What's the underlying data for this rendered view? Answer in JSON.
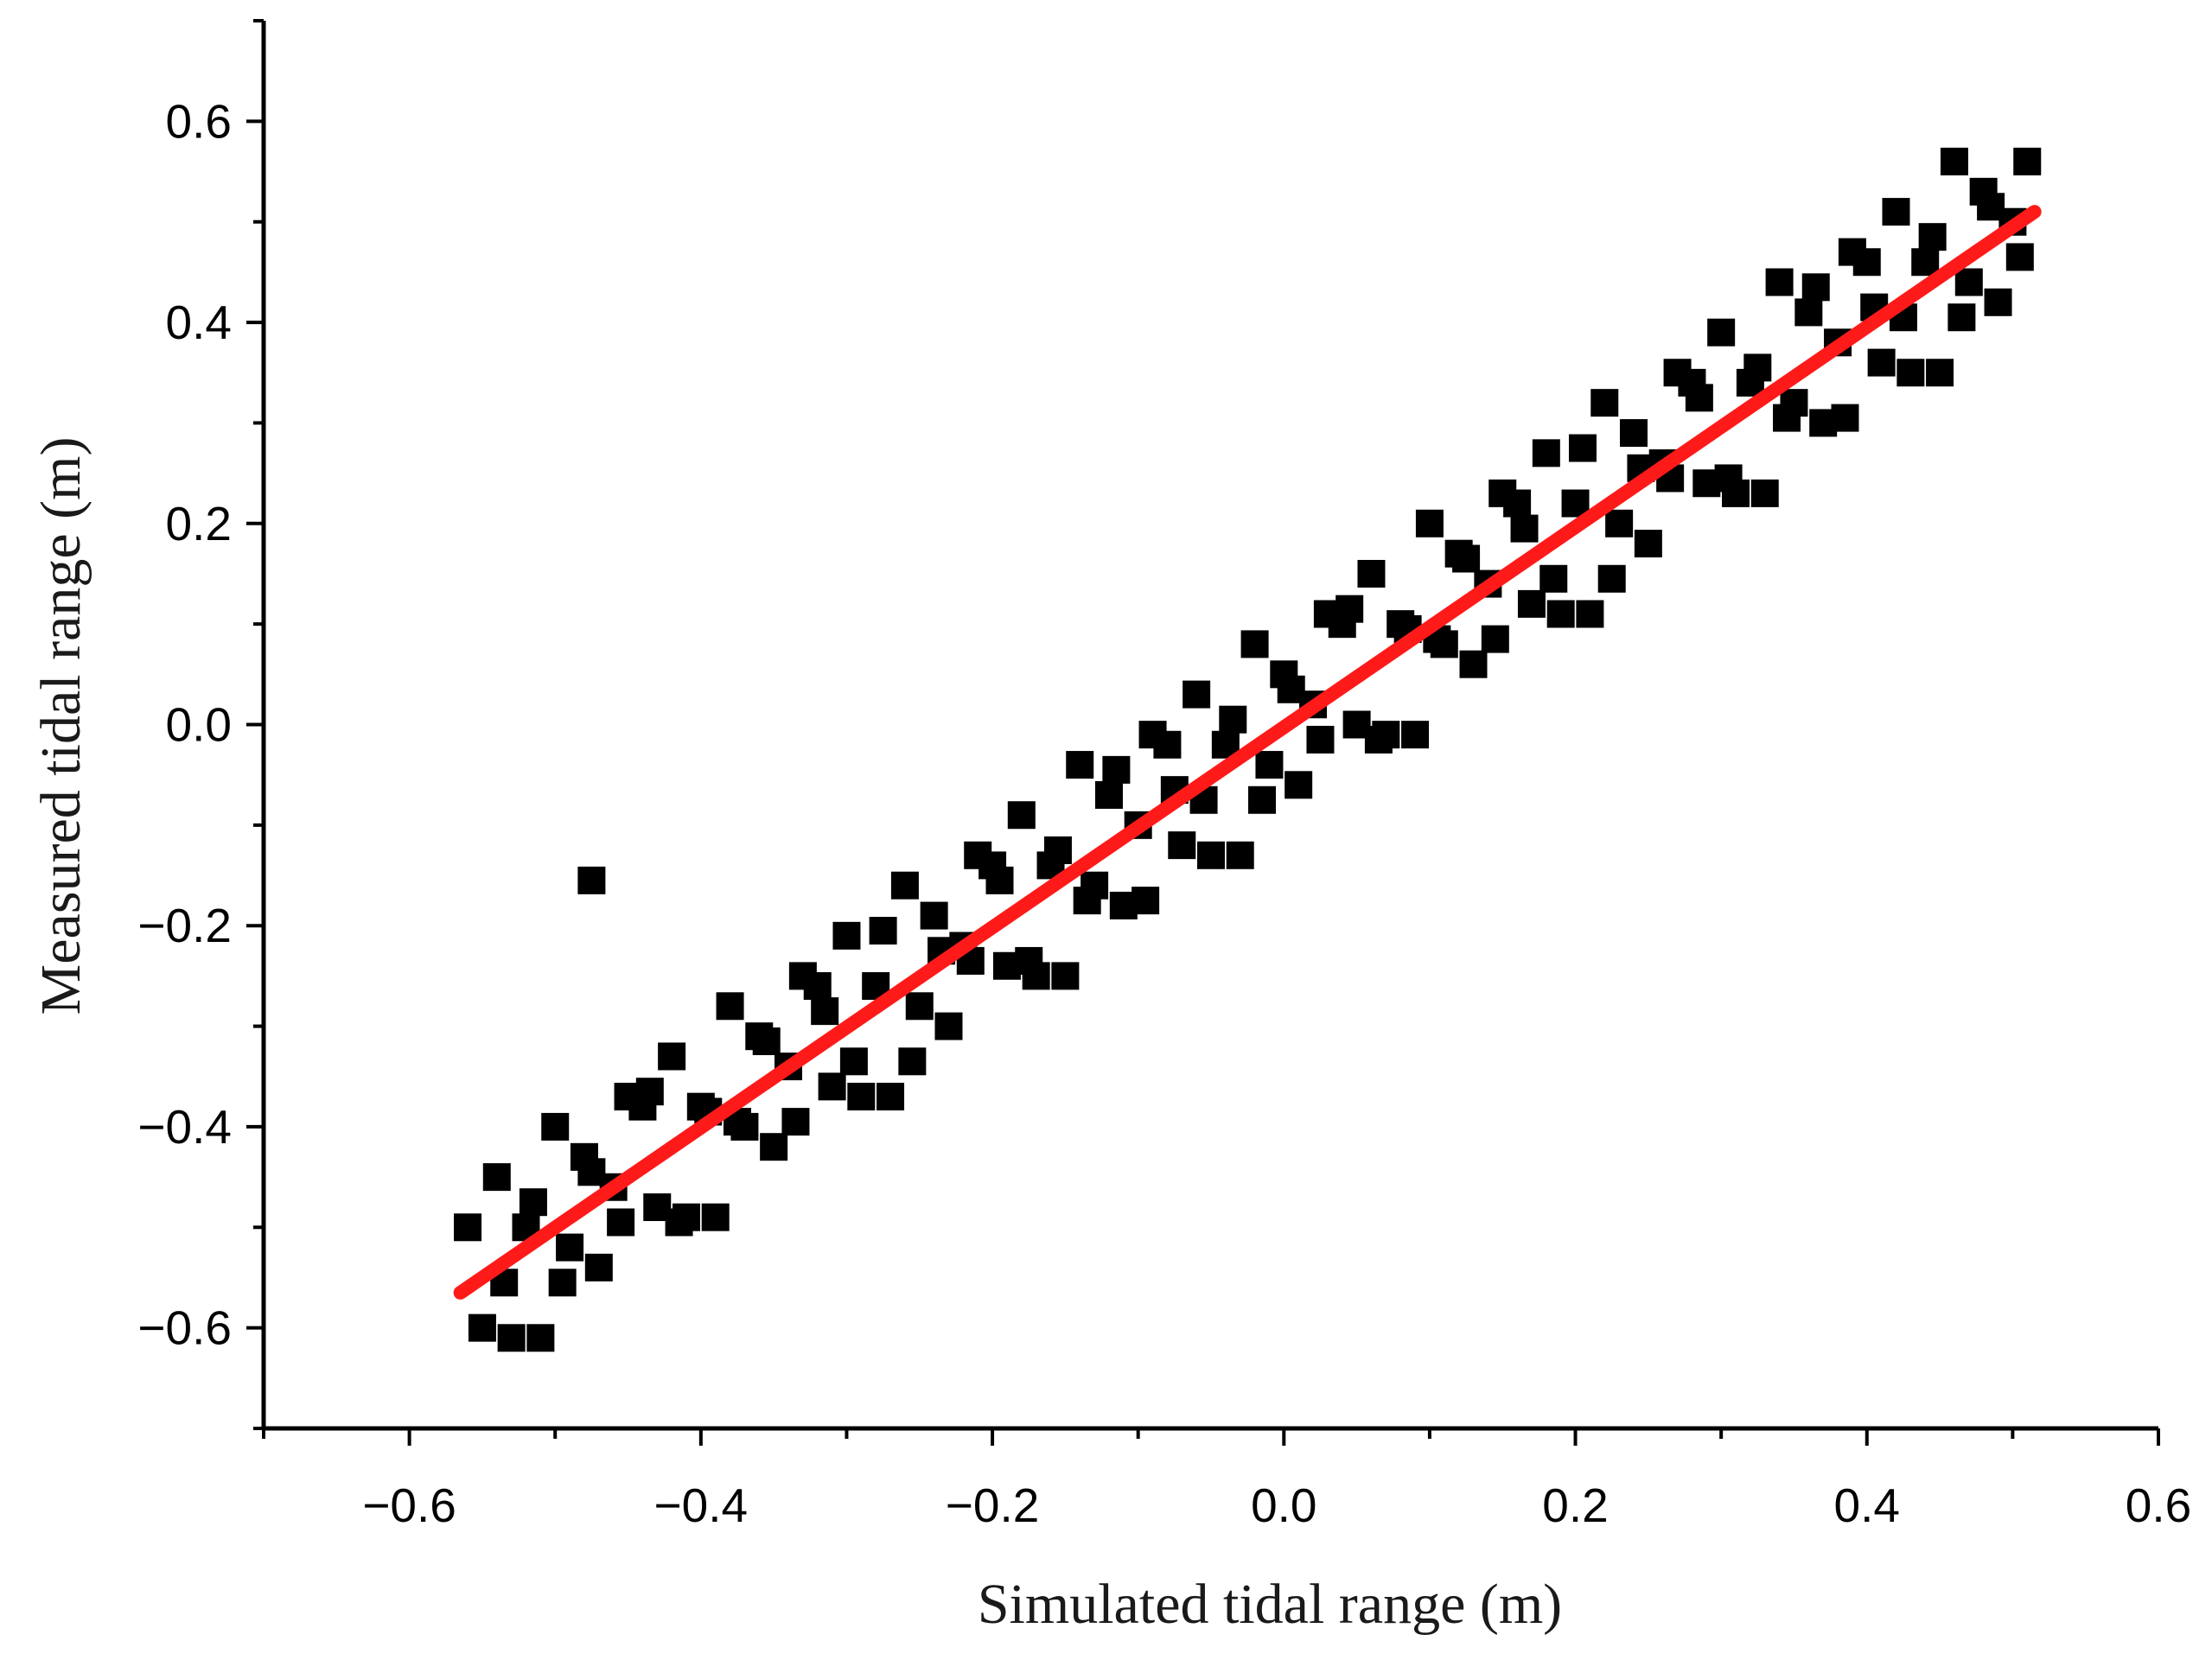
{
  "chart_data": {
    "type": "scatter",
    "x_label": "Simulated tidal range (m)",
    "y_label": "Measured tidal range (m)",
    "xlim": [
      -0.7,
      0.6
    ],
    "ylim": [
      -0.7,
      0.7
    ],
    "xticks": [
      {
        "value": -0.6,
        "label": "−0.6"
      },
      {
        "value": -0.4,
        "label": "−0.4"
      },
      {
        "value": -0.2,
        "label": "−0.2"
      },
      {
        "value": 0,
        "label": "0.0"
      },
      0.2,
      0.4,
      0.6
    ],
    "yticks": [
      {
        "value": -0.6,
        "label": "−0.6"
      },
      {
        "value": -0.4,
        "label": "−0.4"
      },
      {
        "value": -0.2,
        "label": "−0.2"
      },
      {
        "value": 0,
        "label": "0.0"
      },
      0.2,
      0.4,
      0.6
    ],
    "xminorticks": [
      -0.7,
      -0.5,
      -0.3,
      -0.1,
      0.1,
      0.3,
      0.5
    ],
    "yminorticks": [
      -0.7,
      -0.5,
      -0.3,
      -0.1,
      0.1,
      0.3,
      0.5,
      0.7
    ],
    "color": "#000000",
    "marker": "square",
    "x": [
      -0.56,
      -0.55,
      -0.54,
      -0.53,
      -0.52,
      -0.51,
      -0.5,
      -0.49,
      -0.48,
      -0.47,
      -0.46,
      -0.45,
      -0.44,
      -0.43,
      -0.42,
      -0.41,
      -0.4,
      -0.39,
      -0.38,
      -0.37,
      -0.36,
      -0.35,
      -0.34,
      -0.33,
      -0.32,
      -0.31,
      -0.3,
      -0.29,
      -0.28,
      -0.27,
      -0.26,
      -0.25,
      -0.24,
      -0.23,
      -0.22,
      -0.21,
      -0.2,
      -0.19,
      -0.18,
      -0.17,
      -0.16,
      -0.15,
      -0.14,
      -0.13,
      -0.12,
      -0.11,
      -0.1,
      -0.09,
      -0.08,
      -0.07,
      -0.06,
      -0.05,
      -0.04,
      -0.03,
      -0.02,
      -0.01,
      0.0,
      0.01,
      0.02,
      0.03,
      0.04,
      0.05,
      0.06,
      0.07,
      0.08,
      0.09,
      0.1,
      0.11,
      0.12,
      0.13,
      0.14,
      0.15,
      0.16,
      0.17,
      0.18,
      0.19,
      0.2,
      0.21,
      0.22,
      0.23,
      0.24,
      0.25,
      0.26,
      0.27,
      0.28,
      0.29,
      0.3,
      0.31,
      0.32,
      0.33,
      0.34,
      0.35,
      0.36,
      0.37,
      0.38,
      0.39,
      0.4,
      0.41,
      0.42,
      0.43,
      0.44,
      0.45,
      0.46,
      0.47,
      0.48,
      0.49,
      0.5,
      0.51,
      -0.535,
      -0.515,
      -0.495,
      -0.475,
      -0.455,
      -0.435,
      -0.415,
      -0.395,
      -0.375,
      -0.355,
      -0.335,
      -0.315,
      -0.295,
      -0.275,
      -0.255,
      -0.235,
      -0.215,
      -0.195,
      -0.175,
      -0.155,
      -0.135,
      -0.115,
      -0.095,
      -0.075,
      -0.055,
      -0.035,
      -0.015,
      0.005,
      0.025,
      0.045,
      0.065,
      0.085,
      0.105,
      0.125,
      0.145,
      0.165,
      0.185,
      0.205,
      0.225,
      0.245,
      0.265,
      0.285,
      0.305,
      0.325,
      0.345,
      0.365,
      0.385,
      0.405,
      0.425,
      0.445,
      0.465,
      0.485,
      0.505,
      -0.475
    ],
    "y": [
      -0.5,
      -0.6,
      -0.45,
      -0.61,
      -0.5,
      -0.61,
      -0.4,
      -0.52,
      -0.43,
      -0.54,
      -0.46,
      -0.37,
      -0.38,
      -0.48,
      -0.33,
      -0.49,
      -0.38,
      -0.49,
      -0.28,
      -0.4,
      -0.31,
      -0.42,
      -0.34,
      -0.25,
      -0.26,
      -0.36,
      -0.21,
      -0.37,
      -0.26,
      -0.37,
      -0.16,
      -0.28,
      -0.19,
      -0.3,
      -0.22,
      -0.13,
      -0.14,
      -0.24,
      -0.09,
      -0.25,
      -0.14,
      -0.25,
      -0.04,
      -0.16,
      -0.07,
      -0.18,
      -0.1,
      -0.01,
      -0.02,
      -0.12,
      0.03,
      -0.13,
      -0.02,
      -0.13,
      0.08,
      -0.04,
      0.05,
      -0.06,
      0.02,
      0.11,
      0.1,
      0.0,
      0.15,
      -0.01,
      0.1,
      -0.01,
      0.2,
      0.08,
      0.17,
      0.06,
      0.14,
      0.23,
      0.22,
      0.12,
      0.27,
      0.11,
      0.22,
      0.11,
      0.32,
      0.2,
      0.29,
      0.18,
      0.26,
      0.35,
      0.34,
      0.24,
      0.39,
      0.23,
      0.34,
      0.23,
      0.44,
      0.32,
      0.41,
      0.3,
      0.38,
      0.47,
      0.46,
      0.36,
      0.51,
      0.35,
      0.46,
      0.35,
      0.56,
      0.44,
      0.53,
      0.42,
      0.5,
      0.56,
      -0.555,
      -0.475,
      -0.555,
      -0.445,
      -0.495,
      -0.365,
      -0.495,
      -0.385,
      -0.395,
      -0.315,
      -0.395,
      -0.285,
      -0.335,
      -0.205,
      -0.335,
      -0.225,
      -0.235,
      -0.155,
      -0.235,
      -0.125,
      -0.175,
      -0.045,
      -0.175,
      -0.065,
      -0.075,
      0.005,
      -0.075,
      0.035,
      -0.015,
      0.115,
      -0.015,
      0.095,
      0.085,
      0.165,
      0.085,
      0.195,
      0.145,
      0.275,
      0.145,
      0.255,
      0.245,
      0.325,
      0.245,
      0.355,
      0.305,
      0.435,
      0.305,
      0.415,
      0.405,
      0.485,
      0.405,
      0.515,
      0.465,
      -0.155
    ],
    "fit_line": {
      "x": [
        -0.565,
        0.515
      ],
      "y": [
        -0.565,
        0.51
      ],
      "color": "#ff1a1a"
    }
  }
}
